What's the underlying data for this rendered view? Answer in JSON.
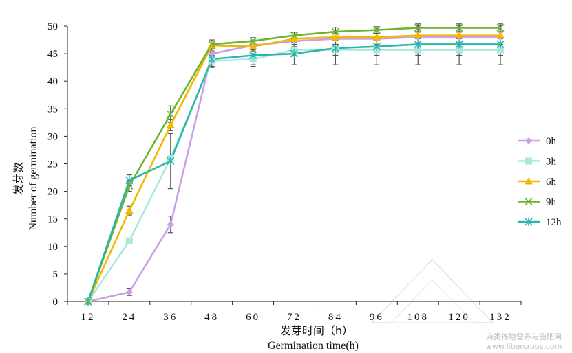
{
  "chart_data": {
    "type": "line",
    "x": [
      12,
      24,
      36,
      48,
      60,
      72,
      84,
      96,
      108,
      120,
      132
    ],
    "ylim": [
      0,
      50
    ],
    "yticks": [
      0,
      5,
      10,
      15,
      20,
      25,
      30,
      35,
      40,
      45,
      50
    ],
    "xlabel_cn": "发芽时间（h）",
    "xlabel_en": "Germination time(h)",
    "ylabel_cn": "发芽数",
    "ylabel_en": "Number of germination",
    "legend_position": "right",
    "series": [
      {
        "name": "0h",
        "color": "#c9a0e8",
        "marker": "diamond",
        "values": [
          0,
          1.7,
          14,
          45,
          46.5,
          47.3,
          47.7,
          47.7,
          48,
          48,
          48
        ],
        "errors": [
          0,
          0.6,
          1.5,
          1.0,
          1.0,
          1.0,
          1.0,
          1.0,
          1.0,
          1.0,
          1.0
        ]
      },
      {
        "name": "3h",
        "color": "#a8e8e0",
        "marker": "square",
        "values": [
          0,
          11,
          26,
          43.7,
          44,
          45.7,
          45.7,
          45.7,
          45.7,
          45.7,
          45.7
        ],
        "errors": [
          0,
          0,
          0,
          1.0,
          1.0,
          1.0,
          1.0,
          1.0,
          1.0,
          1.0,
          1.0
        ]
      },
      {
        "name": "6h",
        "color": "#f2b800",
        "marker": "triangle",
        "values": [
          0,
          16.5,
          32,
          46.5,
          46.3,
          47.7,
          48,
          48,
          48.3,
          48.3,
          48.3
        ],
        "errors": [
          0,
          0.8,
          1.0,
          0.5,
          0.6,
          0.6,
          0.6,
          0.6,
          0.6,
          0.6,
          0.6
        ]
      },
      {
        "name": "9h",
        "color": "#6ab42e",
        "marker": "x",
        "values": [
          0,
          21,
          34,
          46.7,
          47.3,
          48.3,
          49,
          49.3,
          49.7,
          49.7,
          49.7
        ],
        "errors": [
          0,
          1.0,
          1.5,
          0.8,
          0.6,
          0.6,
          0.8,
          0.6,
          0.4,
          0.4,
          0.4
        ]
      },
      {
        "name": "12h",
        "color": "#2bb5ad",
        "marker": "asterisk",
        "values": [
          0,
          22,
          25.5,
          44,
          44.7,
          45,
          46,
          46.3,
          46.7,
          46.7,
          46.7
        ],
        "errors": [
          0,
          1.0,
          5.0,
          1.5,
          2.0,
          2.0,
          3.0,
          3.3,
          3.7,
          3.7,
          3.7
        ]
      }
    ]
  },
  "watermark": {
    "text": "麻类作物营养与施肥网",
    "url": "www.libercrops.com"
  }
}
